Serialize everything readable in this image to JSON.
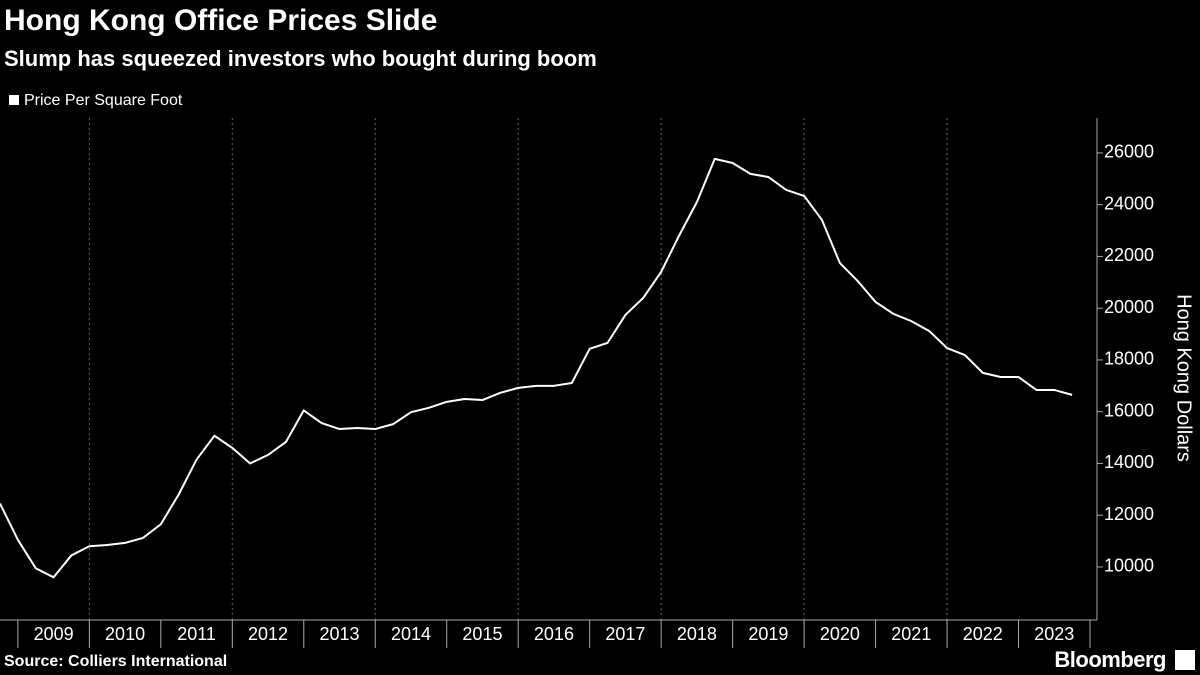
{
  "chart_data": {
    "type": "line",
    "title": "Hong Kong Office Prices Slide",
    "subtitle": "Slump has squeezed investors who bought during boom",
    "y_label": "Hong Kong Dollars",
    "source": "Source: Colliers International",
    "brand": "Bloomberg",
    "x": [
      2008.75,
      2009,
      2009.25,
      2009.5,
      2009.75,
      2010,
      2010.25,
      2010.5,
      2010.75,
      2011,
      2011.25,
      2011.5,
      2011.75,
      2012,
      2012.25,
      2012.5,
      2012.75,
      2013,
      2013.25,
      2013.5,
      2013.75,
      2014,
      2014.25,
      2014.5,
      2014.75,
      2015,
      2015.25,
      2015.5,
      2015.75,
      2016,
      2016.25,
      2016.5,
      2016.75,
      2017,
      2017.25,
      2017.5,
      2017.75,
      2018,
      2018.25,
      2018.5,
      2018.75,
      2019,
      2019.25,
      2019.5,
      2019.75,
      2020,
      2020.25,
      2020.5,
      2020.75,
      2021,
      2021.25,
      2021.5,
      2021.75,
      2022,
      2022.25,
      2022.5,
      2022.75,
      2023,
      2023.25,
      2023.5,
      2023.75
    ],
    "series": [
      {
        "name": "Price Per Square Foot",
        "color": "#ffffff",
        "values": [
          12450,
          11050,
          9950,
          9600,
          10450,
          10800,
          10850,
          10930,
          11120,
          11650,
          12800,
          14150,
          15070,
          14600,
          14000,
          14330,
          14830,
          16050,
          15560,
          15330,
          15370,
          15330,
          15520,
          15980,
          16150,
          16380,
          16490,
          16450,
          16730,
          16920,
          17000,
          17000,
          17110,
          18430,
          18660,
          19740,
          20400,
          21400,
          22800,
          24100,
          25770,
          25610,
          25190,
          25070,
          24570,
          24340,
          23410,
          21750,
          21050,
          20240,
          19780,
          19500,
          19120,
          18460,
          18190,
          17500,
          17340,
          17340,
          16840,
          16840,
          16650
        ]
      }
    ],
    "xlim": [
      2008.75,
      2024
    ],
    "xticks": [
      2009,
      2010,
      2011,
      2012,
      2013,
      2014,
      2015,
      2016,
      2017,
      2018,
      2019,
      2020,
      2021,
      2022,
      2023
    ],
    "xgrid": [
      2010,
      2012,
      2014,
      2016,
      2018,
      2020,
      2022
    ],
    "ylim": [
      7950,
      27350
    ],
    "yticks": [
      10000,
      12000,
      14000,
      16000,
      18000,
      20000,
      22000,
      24000,
      26000
    ],
    "legend": "top-left"
  }
}
